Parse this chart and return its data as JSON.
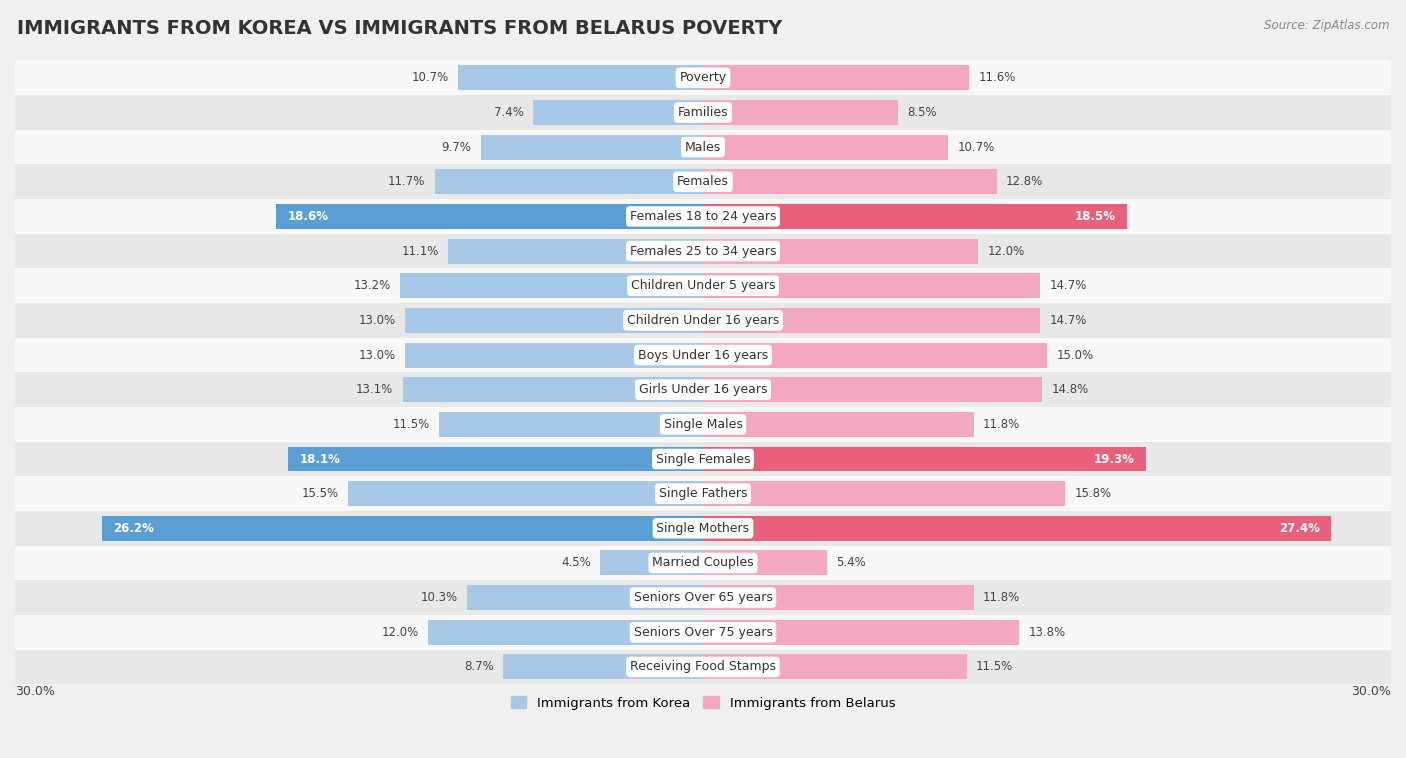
{
  "title": "IMMIGRANTS FROM KOREA VS IMMIGRANTS FROM BELARUS POVERTY",
  "source": "Source: ZipAtlas.com",
  "categories": [
    "Poverty",
    "Families",
    "Males",
    "Females",
    "Females 18 to 24 years",
    "Females 25 to 34 years",
    "Children Under 5 years",
    "Children Under 16 years",
    "Boys Under 16 years",
    "Girls Under 16 years",
    "Single Males",
    "Single Females",
    "Single Fathers",
    "Single Mothers",
    "Married Couples",
    "Seniors Over 65 years",
    "Seniors Over 75 years",
    "Receiving Food Stamps"
  ],
  "korea_values": [
    10.7,
    7.4,
    9.7,
    11.7,
    18.6,
    11.1,
    13.2,
    13.0,
    13.0,
    13.1,
    11.5,
    18.1,
    15.5,
    26.2,
    4.5,
    10.3,
    12.0,
    8.7
  ],
  "belarus_values": [
    11.6,
    8.5,
    10.7,
    12.8,
    18.5,
    12.0,
    14.7,
    14.7,
    15.0,
    14.8,
    11.8,
    19.3,
    15.8,
    27.4,
    5.4,
    11.8,
    13.8,
    11.5
  ],
  "korea_color": "#a8c8e8",
  "belarus_color": "#f4a8c0",
  "korea_highlight_color": "#5a9fd4",
  "belarus_highlight_color": "#e8607a",
  "highlight_rows": [
    4,
    11,
    13
  ],
  "xlim": 30.0,
  "bar_height": 0.72,
  "background_color": "#f0f0f0",
  "row_bg_white": "#f8f8f8",
  "row_bg_gray": "#e8e8e8",
  "legend_korea": "Immigrants from Korea",
  "legend_belarus": "Immigrants from Belarus",
  "title_fontsize": 14,
  "label_fontsize": 9,
  "value_fontsize": 8.5
}
